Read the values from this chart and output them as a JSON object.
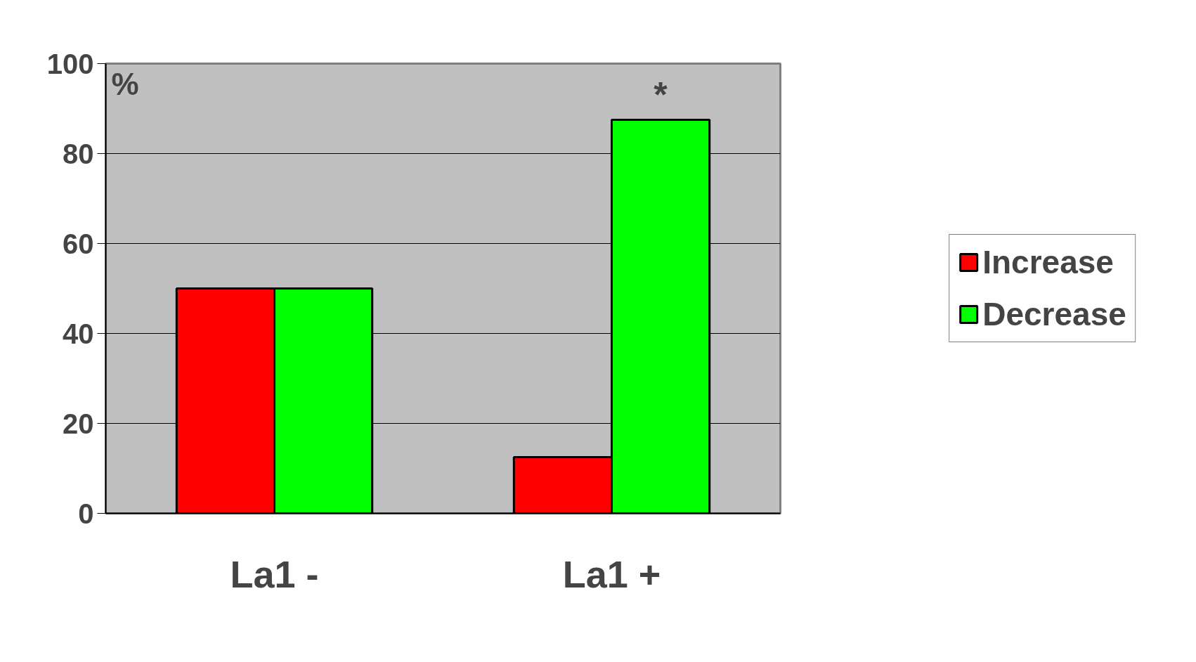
{
  "chart_data": {
    "type": "bar",
    "ylabel": "%",
    "categories": [
      "La1 -",
      "La1 +"
    ],
    "series": [
      {
        "name": "Increase",
        "color": "#ff0000",
        "values": [
          50,
          12.5
        ]
      },
      {
        "name": "Decrease",
        "color": "#00ff00",
        "values": [
          50,
          87.5
        ]
      }
    ],
    "ylim": [
      0,
      100
    ],
    "yticks": [
      0,
      20,
      40,
      60,
      80,
      100
    ],
    "grid": "y",
    "legend": "right",
    "annotations": [
      "*"
    ]
  }
}
